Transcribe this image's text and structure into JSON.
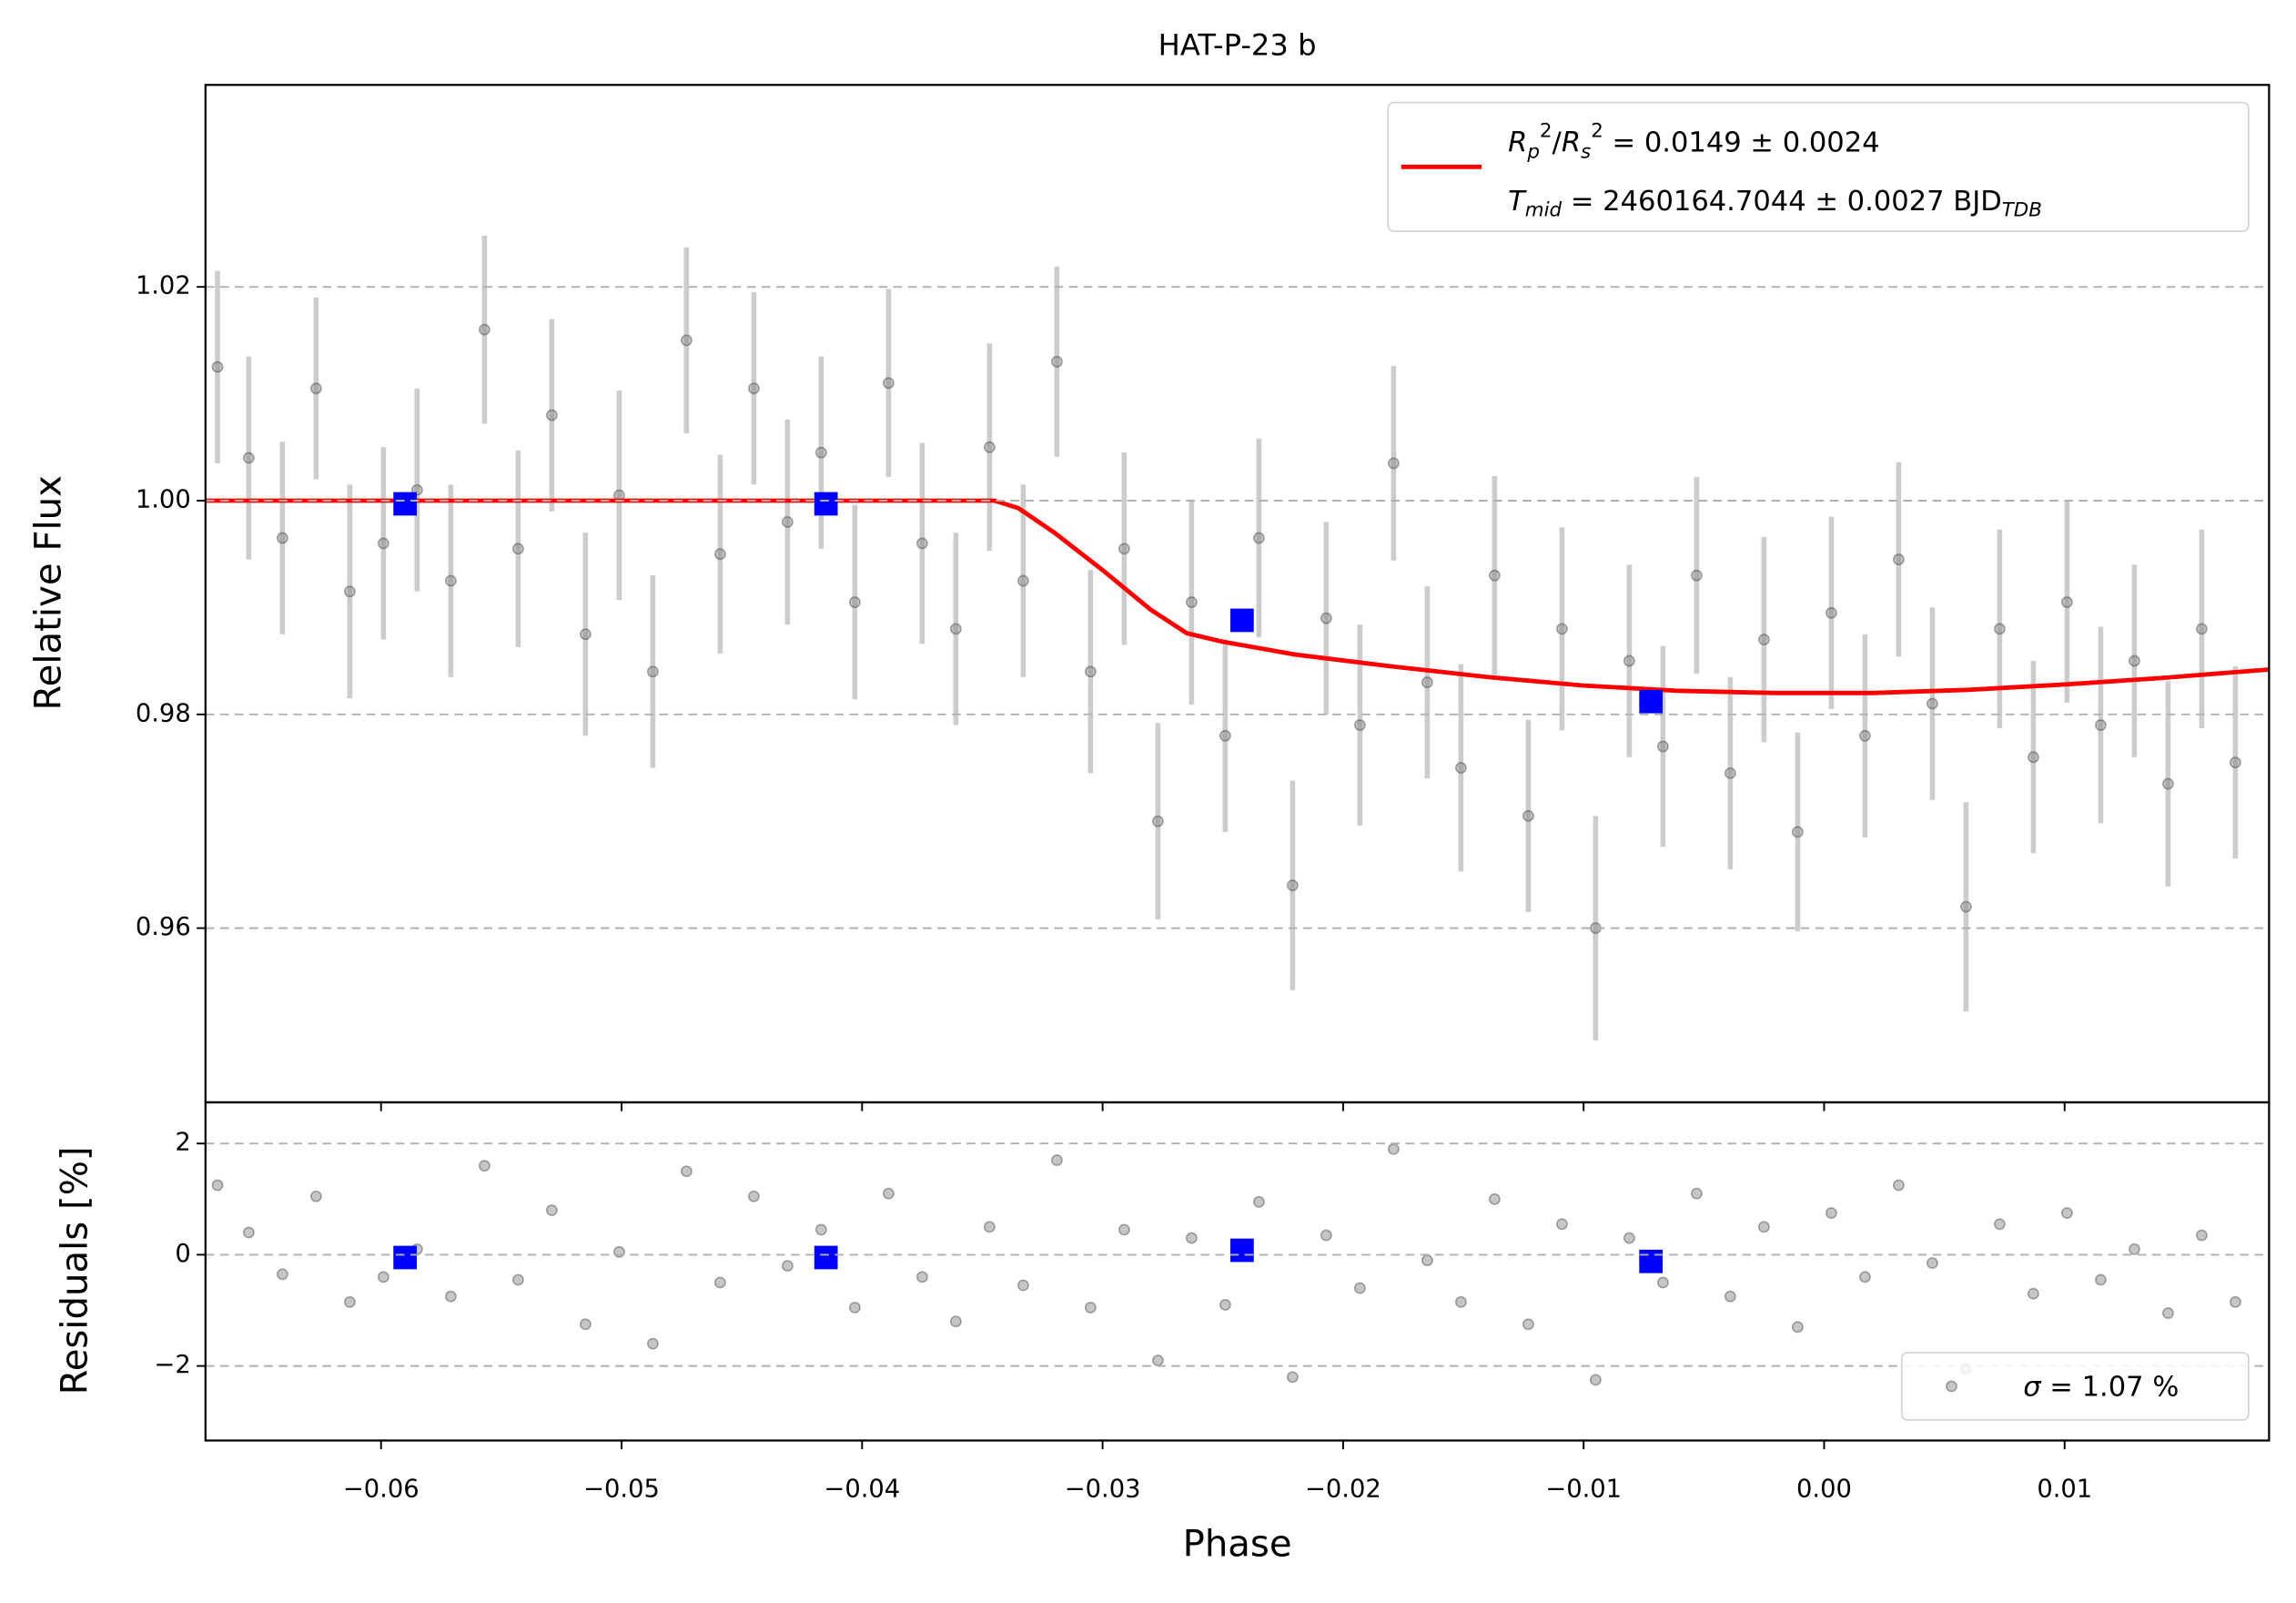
{
  "chart_data": [
    {
      "type": "scatter",
      "title": "HAT-P-23 b",
      "ylabel": "Relative Flux",
      "xlim": [
        -0.0673,
        0.0185
      ],
      "ylim": [
        0.9437,
        1.0389
      ],
      "yticks": [
        0.96,
        0.98,
        {
          "value": 1.0,
          "label": "1.00"
        },
        1.02
      ],
      "grid": true,
      "points": {
        "color": "#808080",
        "errcolor": "#cccccc",
        "x": [
          -0.0668,
          -0.0655,
          -0.0641,
          -0.0627,
          -0.0613,
          -0.0599,
          -0.0585,
          -0.0571,
          -0.0557,
          -0.0543,
          -0.0529,
          -0.0515,
          -0.0501,
          -0.0487,
          -0.0473,
          -0.0459,
          -0.0445,
          -0.0431,
          -0.0417,
          -0.0403,
          -0.0389,
          -0.0375,
          -0.0361,
          -0.0347,
          -0.0333,
          -0.0319,
          -0.0305,
          -0.0291,
          -0.0277,
          -0.0263,
          -0.0249,
          -0.0235,
          -0.0221,
          -0.0207,
          -0.0193,
          -0.0179,
          -0.0165,
          -0.0151,
          -0.0137,
          -0.0123,
          -0.0109,
          -0.0095,
          -0.0081,
          -0.0067,
          -0.0053,
          -0.0039,
          -0.0025,
          -0.0011,
          0.0003,
          0.0017,
          0.0031,
          0.0045,
          0.0059,
          0.0073,
          0.0087,
          0.0101,
          0.0115,
          0.0129,
          0.0143,
          0.0157,
          0.0171
        ],
        "values": [
          1.0125,
          1.004,
          0.9965,
          1.0105,
          0.9915,
          0.996,
          1.001,
          0.9925,
          1.016,
          0.9955,
          1.008,
          0.9875,
          1.0005,
          0.984,
          1.015,
          0.995,
          1.0105,
          0.998,
          1.0045,
          0.9905,
          1.011,
          0.996,
          0.988,
          1.005,
          0.9925,
          1.013,
          0.984,
          0.9955,
          0.97,
          0.9905,
          0.978,
          0.9965,
          0.964,
          0.989,
          0.979,
          1.0035,
          0.983,
          0.975,
          0.993,
          0.9705,
          0.988,
          0.96,
          0.985,
          0.977,
          0.993,
          0.9745,
          0.987,
          0.969,
          0.9895,
          0.978,
          0.9945,
          0.981,
          0.962,
          0.988,
          0.976,
          0.9905,
          0.979,
          0.985,
          0.9735,
          0.988,
          0.9755
        ],
        "errors": [
          0.009,
          0.0095,
          0.009,
          0.0085,
          0.01,
          0.009,
          0.0095,
          0.009,
          0.0088,
          0.0092,
          0.009,
          0.0095,
          0.0098,
          0.009,
          0.0087,
          0.0093,
          0.009,
          0.0096,
          0.009,
          0.0091,
          0.0088,
          0.0094,
          0.009,
          0.0097,
          0.009,
          0.0089,
          0.0095,
          0.009,
          0.0092,
          0.0096,
          0.009,
          0.0093,
          0.0098,
          0.009,
          0.0094,
          0.0091,
          0.009,
          0.0097,
          0.0093,
          0.009,
          0.0095,
          0.0105,
          0.009,
          0.0094,
          0.0092,
          0.009,
          0.0096,
          0.0093,
          0.009,
          0.0095,
          0.0091,
          0.009,
          0.0098,
          0.0093,
          0.009,
          0.0094,
          0.0092,
          0.009,
          0.0096,
          0.0093,
          0.009
        ]
      },
      "binned": {
        "color": "#0000ff",
        "x": [
          -0.059,
          -0.0415,
          -0.0242,
          -0.0072
        ],
        "values": [
          0.9997,
          0.9997,
          0.9888,
          0.9812
        ]
      },
      "model": {
        "color": "#ff0000",
        "x": [
          -0.0673,
          -0.0345,
          -0.0335,
          -0.032,
          -0.03,
          -0.028,
          -0.0265,
          -0.025,
          -0.022,
          -0.018,
          -0.014,
          -0.01,
          -0.006,
          -0.002,
          0.002,
          0.006,
          0.01,
          0.014,
          0.0185
        ],
        "values": [
          1.0,
          1.0,
          0.9993,
          0.997,
          0.9935,
          0.9898,
          0.9876,
          0.9868,
          0.9856,
          0.9845,
          0.9835,
          0.9827,
          0.9822,
          0.982,
          0.982,
          0.9823,
          0.9828,
          0.9834,
          0.9842
        ]
      },
      "legend": {
        "corner": "upper right",
        "lines": [
          [
            {
              "text": "R",
              "style": "it"
            },
            {
              "text": "p",
              "style": "sub"
            },
            {
              "text": "2",
              "style": "sup"
            },
            {
              "text": "/"
            },
            {
              "text": "R",
              "style": "it"
            },
            {
              "text": "s",
              "style": "sub"
            },
            {
              "text": "2",
              "style": "sup"
            },
            {
              "text": " = 0.0149 ± 0.0024"
            }
          ],
          [
            {
              "text": "T",
              "style": "it"
            },
            {
              "text": "mid",
              "style": "sub"
            },
            {
              "text": " = 2460164.7044 ± 0.0027 BJD"
            },
            {
              "text": "TDB",
              "style": "sub"
            }
          ]
        ]
      }
    },
    {
      "type": "scatter",
      "ylabel": "Residuals [%]",
      "xlabel": "Phase",
      "xlim": [
        -0.0673,
        0.0185
      ],
      "ylim": [
        -3.34,
        2.74
      ],
      "xticks": [
        {
          "value": -0.06,
          "label": "−0.06"
        },
        {
          "value": -0.05,
          "label": "−0.05"
        },
        {
          "value": -0.04,
          "label": "−0.04"
        },
        {
          "value": -0.03,
          "label": "−0.03"
        },
        {
          "value": -0.02,
          "label": "−0.02"
        },
        {
          "value": -0.01,
          "label": "−0.01"
        },
        {
          "value": 0.0,
          "label": "0.00"
        },
        0.01
      ],
      "yticks": [
        {
          "value": -2,
          "label": "−2"
        },
        0,
        2
      ],
      "grid": true,
      "points": {
        "color": "#808080",
        "x": [
          -0.0668,
          -0.0655,
          -0.0641,
          -0.0627,
          -0.0613,
          -0.0599,
          -0.0585,
          -0.0571,
          -0.0557,
          -0.0543,
          -0.0529,
          -0.0515,
          -0.0501,
          -0.0487,
          -0.0473,
          -0.0459,
          -0.0445,
          -0.0431,
          -0.0417,
          -0.0403,
          -0.0389,
          -0.0375,
          -0.0361,
          -0.0347,
          -0.0333,
          -0.0319,
          -0.0305,
          -0.0291,
          -0.0277,
          -0.0263,
          -0.0249,
          -0.0235,
          -0.0221,
          -0.0207,
          -0.0193,
          -0.0179,
          -0.0165,
          -0.0151,
          -0.0137,
          -0.0123,
          -0.0109,
          -0.0095,
          -0.0081,
          -0.0067,
          -0.0053,
          -0.0039,
          -0.0025,
          -0.0011,
          0.0003,
          0.0017,
          0.0031,
          0.0045,
          0.0059,
          0.0073,
          0.0087,
          0.0101,
          0.0115,
          0.0129,
          0.0143,
          0.0157,
          0.0171
        ],
        "values": [
          1.25,
          0.4,
          -0.35,
          1.05,
          -0.85,
          -0.4,
          0.1,
          -0.75,
          1.6,
          -0.45,
          0.8,
          -1.25,
          0.05,
          -1.6,
          1.5,
          -0.5,
          1.05,
          -0.2,
          0.45,
          -0.95,
          1.1,
          -0.4,
          -1.2,
          0.5,
          -0.55,
          1.7,
          -0.95,
          0.45,
          -1.9,
          0.3,
          -0.9,
          0.95,
          -2.2,
          0.35,
          -0.6,
          1.9,
          -0.1,
          -0.85,
          1.0,
          -1.25,
          0.55,
          -2.25,
          0.3,
          -0.5,
          1.1,
          -0.75,
          0.5,
          -1.3,
          0.75,
          -0.4,
          1.25,
          -0.15,
          -2.05,
          0.55,
          -0.7,
          0.75,
          -0.45,
          0.1,
          -1.05,
          0.35,
          -0.85
        ]
      },
      "binned": {
        "color": "#0000ff",
        "x": [
          -0.059,
          -0.0415,
          -0.0242,
          -0.0072
        ],
        "values": [
          -0.05,
          -0.05,
          0.08,
          -0.12
        ]
      },
      "legend": {
        "corner": "lower right",
        "lines": [
          [
            {
              "text": "σ",
              "style": "it"
            },
            {
              "text": " = 1.07 %"
            }
          ]
        ]
      }
    }
  ]
}
